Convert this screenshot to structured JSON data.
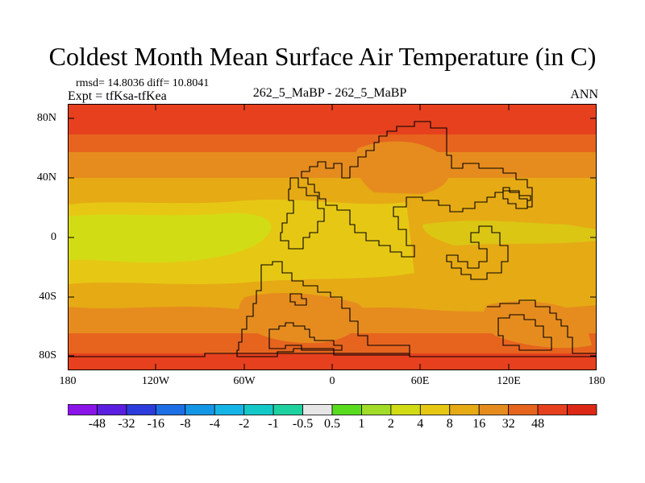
{
  "title": "Coldest Month Mean Surface Air Temperature (in C)",
  "stats": "rmsd= 14.8036 diff= 10.8041",
  "expt": "Expt = tfKsa-tfKea",
  "cases": "262_5_MaBP - 262_5_MaBP",
  "season": "ANN",
  "lat_labels": [
    "80N",
    "40N",
    "0",
    "40S",
    "80S"
  ],
  "lon_labels": [
    "180",
    "120W",
    "60W",
    "0",
    "60E",
    "120E",
    "180"
  ],
  "colorbar": {
    "colors": [
      "#8a14e8",
      "#5a1ee0",
      "#2c3cdc",
      "#1e6ee6",
      "#1496e6",
      "#14b4e6",
      "#14c8c8",
      "#1ed2a0",
      "#e6e6e6",
      "#5adc1e",
      "#a0dc28",
      "#d2dc14",
      "#e6c814",
      "#e6aa14",
      "#e68c1e",
      "#e6641e",
      "#e6401e",
      "#dc2814"
    ],
    "labels": [
      "-48",
      "-32",
      "-16",
      "-8",
      "-4",
      "-2",
      "-1",
      "-0.5",
      "0.5",
      "1",
      "2",
      "4",
      "8",
      "16",
      "32",
      "48"
    ]
  },
  "field_colors": {
    "polar": "#e6401e",
    "subpolar": "#e6641e",
    "midlat": "#e68c1e",
    "subtrop": "#e6aa14",
    "tropic": "#e6c814",
    "equator": "#d2dc14"
  }
}
